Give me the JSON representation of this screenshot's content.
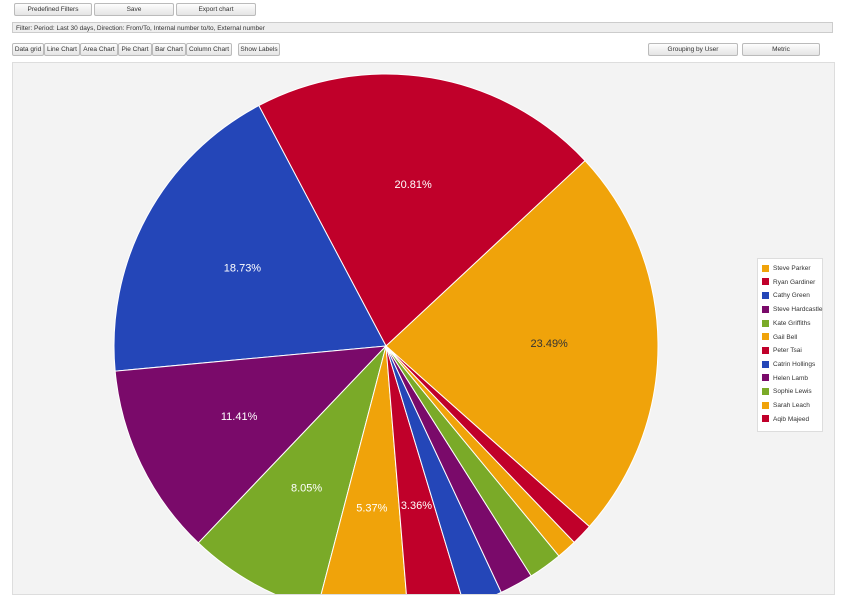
{
  "toolbar": {
    "buttons": [
      "Predefined Filters",
      "Save",
      "Export chart"
    ]
  },
  "filter_bar": {
    "text": "Filter: Period: Last 30 days, Direction: From/To, Internal number to/to, External number"
  },
  "view_buttons": [
    "Data grid",
    "Line Chart",
    "Area Chart",
    "Pie Chart",
    "Bar Chart",
    "Column Chart",
    "Show Labels"
  ],
  "controls": {
    "grouping": "Grouping by User",
    "metric": "Metric"
  },
  "chart_data": {
    "type": "pie",
    "categories": [
      "Steve Parker",
      "Ryan Gardiner",
      "Cathy Green",
      "Steve Hardcastle",
      "Kate Griffiths",
      "Gail Bell",
      "Peter Tsai",
      "Catrin Hollings",
      "Helen Lamb",
      "Sophie Lewis",
      "Sarah Leach",
      "Aqib Majeed"
    ],
    "values": [
      23.49,
      20.81,
      18.73,
      11.41,
      8.05,
      5.37,
      3.36,
      2.3,
      2.0,
      2.0,
      1.2,
      1.28
    ],
    "value_labels": [
      "23.49%",
      "20.81%",
      "18.73%",
      "11.41%",
      "8.05%",
      "5.37%",
      "3.36%",
      null,
      null,
      null,
      null,
      null
    ],
    "colors": [
      "#f0a30a",
      "#c0002a",
      "#2446b8",
      "#7a0a6a",
      "#7aaa28",
      "#f0a30a",
      "#c0002a",
      "#2446b8",
      "#7a0a6a",
      "#7aaa28",
      "#f0a30a",
      "#c0002a"
    ],
    "legend": "right"
  }
}
